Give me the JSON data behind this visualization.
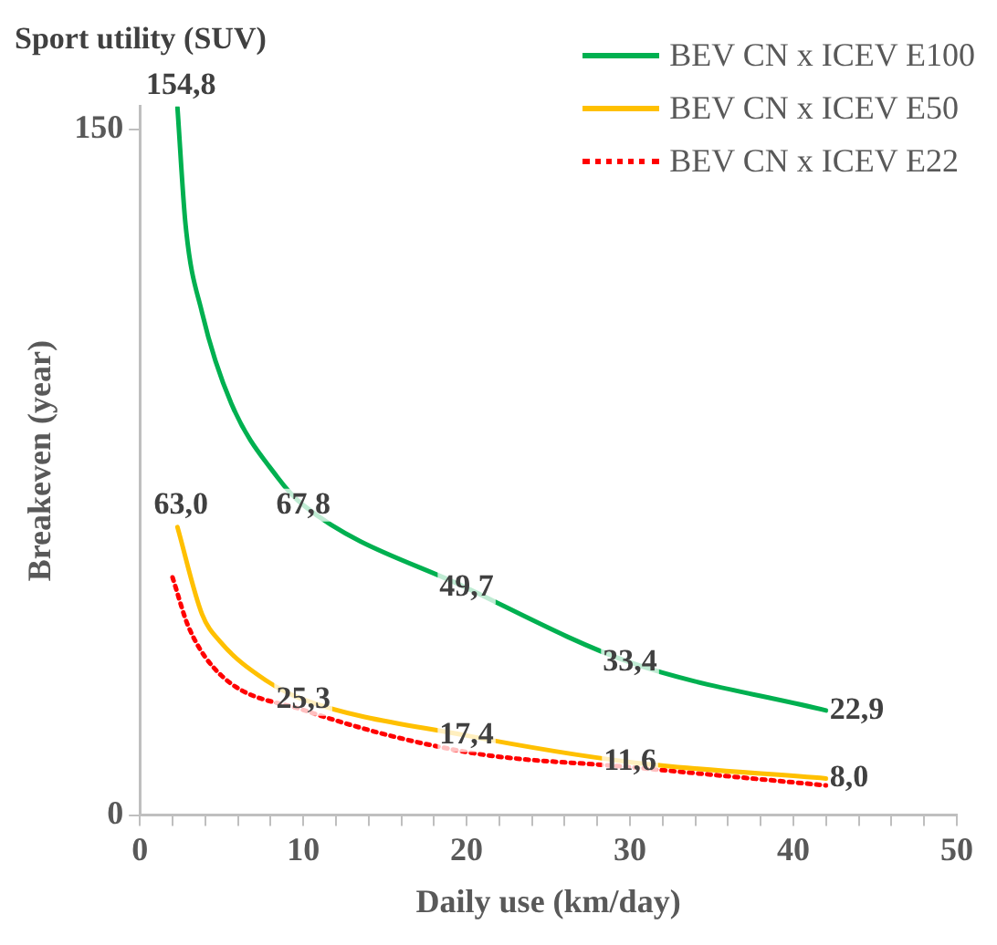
{
  "chart_data": {
    "type": "line",
    "title": "Sport utility (SUV)",
    "xlabel": "Daily use (km/day)",
    "ylabel": "Breakeven (year)",
    "xlim": [
      0,
      50
    ],
    "xticks": [
      0,
      {
        "value": 2,
        "label": null
      },
      {
        "value": 4,
        "label": null
      },
      {
        "value": 6,
        "label": null
      },
      {
        "value": 8,
        "label": null
      },
      10,
      {
        "value": 12,
        "label": null
      },
      {
        "value": 14,
        "label": null
      },
      {
        "value": 16,
        "label": null
      },
      {
        "value": 18,
        "label": null
      },
      20,
      {
        "value": 22,
        "label": null
      },
      {
        "value": 24,
        "label": null
      },
      {
        "value": 26,
        "label": null
      },
      {
        "value": 28,
        "label": null
      },
      30,
      {
        "value": 32,
        "label": null
      },
      {
        "value": 34,
        "label": null
      },
      {
        "value": 36,
        "label": null
      },
      {
        "value": 38,
        "label": null
      },
      40,
      {
        "value": 42,
        "label": null
      },
      {
        "value": 44,
        "label": null
      },
      {
        "value": 46,
        "label": null
      },
      {
        "value": 48,
        "label": null
      },
      50
    ],
    "ylim": [
      0,
      155
    ],
    "yticks": [
      0,
      150
    ],
    "grid": false,
    "legend": "top right",
    "marker": "none",
    "series": [
      {
        "name": "BEV CN x ICEV E100",
        "color": "#00b050",
        "line_style": "solid",
        "x": [
          2.3,
          2.8,
          3.8,
          5.6,
          8.4,
          10,
          20,
          30,
          42
        ],
        "values": [
          154.8,
          129,
          110,
          90,
          74,
          67.8,
          49.7,
          33.4,
          22.9
        ],
        "value_labels": [
          "154,8",
          null,
          null,
          null,
          null,
          "67,8",
          "49,7",
          "33,4",
          "22,9"
        ]
      },
      {
        "name": "BEV CN x ICEV E50",
        "color": "#ffc000",
        "line_style": "solid",
        "x": [
          2.3,
          3.8,
          4.9,
          7.7,
          10,
          20,
          30,
          42
        ],
        "values": [
          63.0,
          44,
          38,
          29.5,
          25.3,
          17.4,
          11.6,
          8.0
        ],
        "value_labels": [
          "63,0",
          null,
          null,
          null,
          "25,3",
          "17,4",
          "11,6",
          "8,0"
        ]
      },
      {
        "name": "BEV CN x ICEV E22",
        "color": "#ff0000",
        "line_style": "dotted",
        "x": [
          2.0,
          3,
          5,
          10,
          20,
          30,
          42
        ],
        "values": [
          52,
          41,
          30.5,
          23,
          13.8,
          10.5,
          6.5
        ]
      }
    ]
  }
}
